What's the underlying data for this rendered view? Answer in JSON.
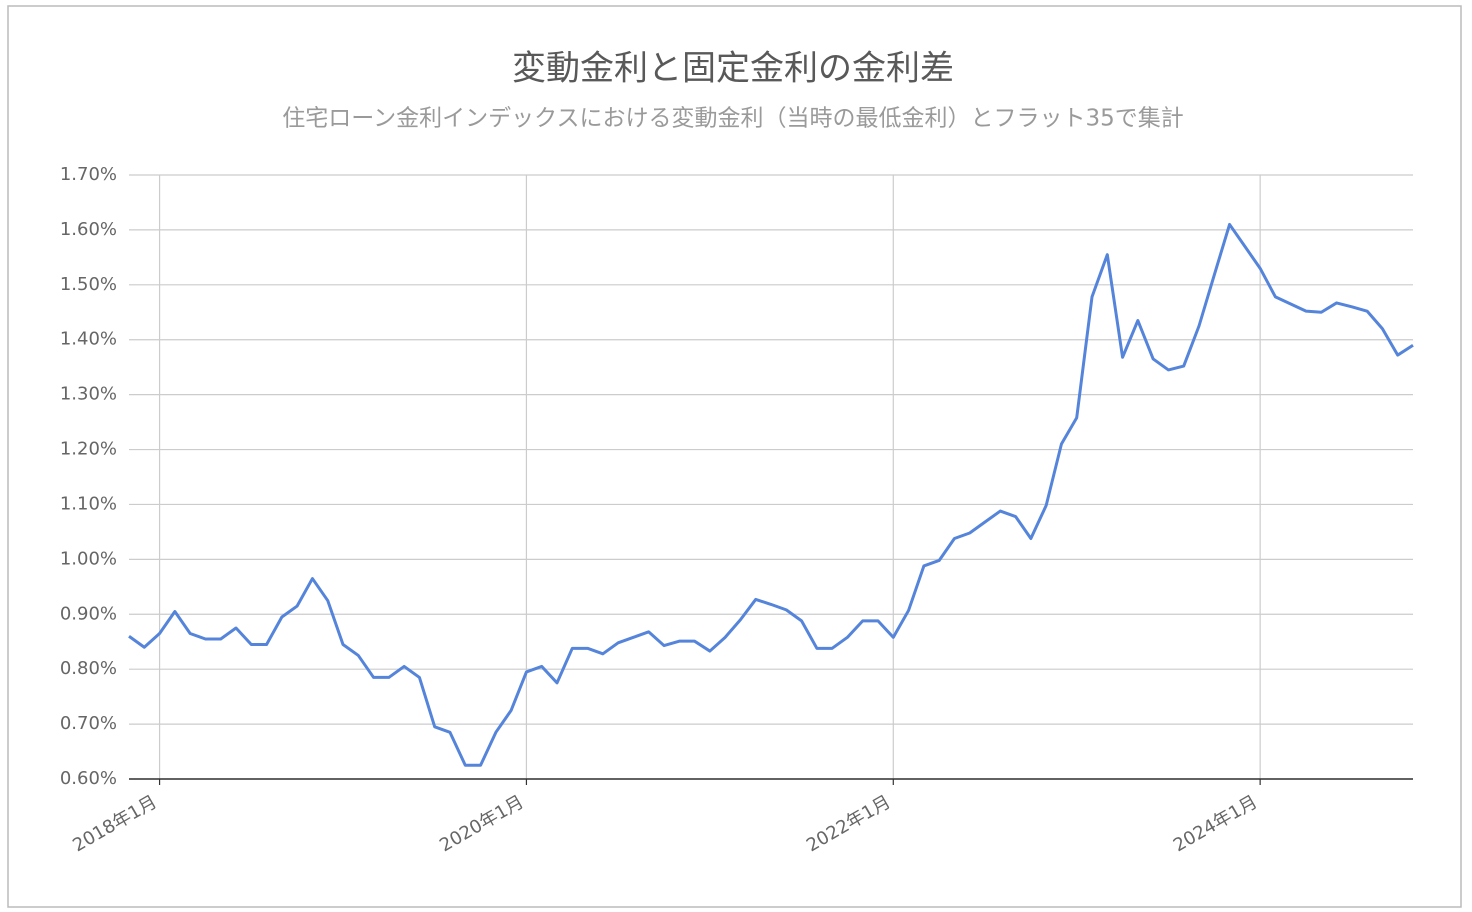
{
  "chart_data": {
    "type": "line",
    "title": "変動金利と固定金利の金利差",
    "subtitle": "住宅ローン金利インデックスにおける変動金利（当時の最低金利）とフラット35で集計",
    "x": [
      "2017-11",
      "2017-12",
      "2018-01",
      "2018-02",
      "2018-03",
      "2018-04",
      "2018-05",
      "2018-06",
      "2018-07",
      "2018-08",
      "2018-09",
      "2018-10",
      "2018-11",
      "2018-12",
      "2019-01",
      "2019-02",
      "2019-03",
      "2019-04",
      "2019-05",
      "2019-06",
      "2019-07",
      "2019-08",
      "2019-09",
      "2019-10",
      "2019-11",
      "2019-12",
      "2020-01",
      "2020-02",
      "2020-03",
      "2020-04",
      "2020-05",
      "2020-06",
      "2020-07",
      "2020-08",
      "2020-09",
      "2020-10",
      "2020-11",
      "2020-12",
      "2021-01",
      "2021-02",
      "2021-03",
      "2021-04",
      "2021-05",
      "2021-06",
      "2021-07",
      "2021-08",
      "2021-09",
      "2021-10",
      "2021-11",
      "2021-12",
      "2022-01",
      "2022-02",
      "2022-03",
      "2022-04",
      "2022-05",
      "2022-06",
      "2022-07",
      "2022-08",
      "2022-09",
      "2022-10",
      "2022-11",
      "2022-12",
      "2023-01",
      "2023-02",
      "2023-03",
      "2023-04",
      "2023-05",
      "2023-06",
      "2023-07",
      "2023-08",
      "2023-09",
      "2023-10",
      "2023-11",
      "2023-12",
      "2024-01",
      "2024-02",
      "2024-03",
      "2024-04",
      "2024-05",
      "2024-06",
      "2024-07",
      "2024-08",
      "2024-09",
      "2024-10",
      "2024-11"
    ],
    "series": [
      {
        "color": "#5584db",
        "values": [
          0.86,
          0.84,
          0.865,
          0.905,
          0.865,
          0.855,
          0.855,
          0.875,
          0.845,
          0.845,
          0.895,
          0.915,
          0.965,
          0.925,
          0.845,
          0.825,
          0.785,
          0.785,
          0.805,
          0.785,
          0.695,
          0.685,
          0.625,
          0.625,
          0.685,
          0.725,
          0.795,
          0.805,
          0.775,
          0.838,
          0.838,
          0.828,
          0.848,
          0.858,
          0.868,
          0.843,
          0.851,
          0.851,
          0.833,
          0.858,
          0.89,
          0.927,
          0.918,
          0.908,
          0.888,
          0.838,
          0.838,
          0.858,
          0.888,
          0.888,
          0.858,
          0.907,
          0.988,
          0.998,
          1.038,
          1.048,
          1.068,
          1.088,
          1.078,
          1.038,
          1.098,
          1.21,
          1.258,
          1.478,
          1.555,
          1.368,
          1.435,
          1.365,
          1.345,
          1.352,
          1.425,
          1.518,
          1.61,
          1.57,
          1.53,
          1.478,
          1.465,
          1.452,
          1.45,
          1.467,
          1.46,
          1.452,
          1.42,
          1.372,
          1.39
        ]
      }
    ],
    "xticks": [
      {
        "value": "2018-01",
        "label": "2018年1月"
      },
      {
        "value": "2020-01",
        "label": "2020年1月"
      },
      {
        "value": "2022-01",
        "label": "2022年1月"
      },
      {
        "value": "2024-01",
        "label": "2024年1月"
      }
    ],
    "ylim": [
      0.6,
      1.7
    ],
    "yticks": [
      {
        "value": 0.6,
        "label": "0.60%"
      },
      {
        "value": 0.7,
        "label": "0.70%"
      },
      {
        "value": 0.8,
        "label": "0.80%"
      },
      {
        "value": 0.9,
        "label": "0.90%"
      },
      {
        "value": 1.0,
        "label": "1.00%"
      },
      {
        "value": 1.1,
        "label": "1.10%"
      },
      {
        "value": 1.2,
        "label": "1.20%"
      },
      {
        "value": 1.3,
        "label": "1.30%"
      },
      {
        "value": 1.4,
        "label": "1.40%"
      },
      {
        "value": 1.5,
        "label": "1.50%"
      },
      {
        "value": 1.6,
        "label": "1.60%"
      },
      {
        "value": 1.7,
        "label": "1.70%"
      }
    ],
    "grid": true
  }
}
